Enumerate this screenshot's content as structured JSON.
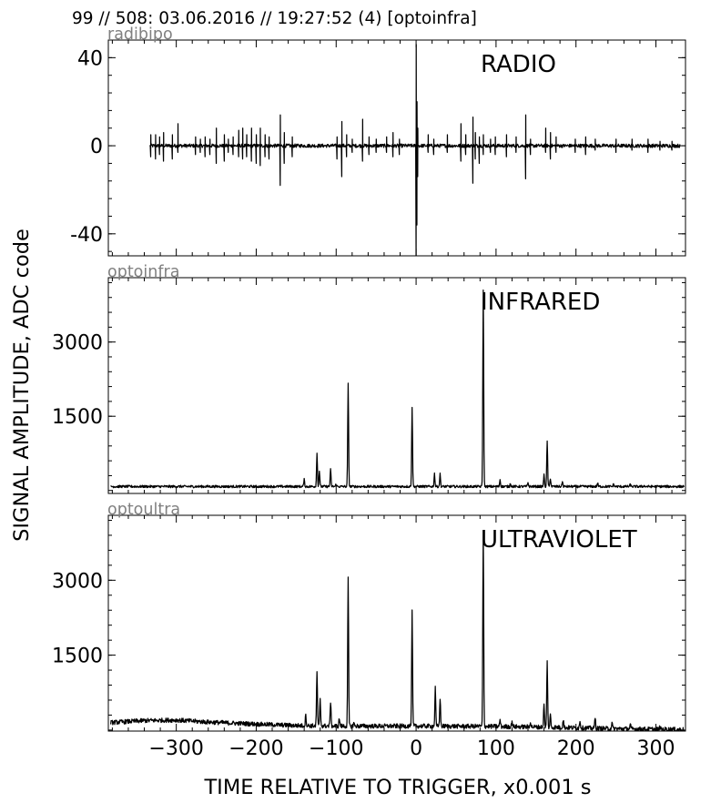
{
  "header": "99 // 508:   03.06.2016 // 19:27:52 (4)  [optoinfra]",
  "ylabel": "SIGNAL AMPLITUDE,  ADC code",
  "xlabel": "TIME RELATIVE TO TRIGGER,   x0.001 s",
  "colors": {
    "trace": "#000000",
    "panel_label": "#808080",
    "background": "#ffffff"
  },
  "chart_data": [
    {
      "type": "line",
      "panel_label": "radibipo",
      "title": "RADIO",
      "xlim": [
        -385,
        337
      ],
      "ylim": [
        -50,
        48
      ],
      "yticks": [
        {
          "value": 40,
          "label": "40"
        },
        {
          "value": 0,
          "label": "0"
        },
        {
          "value": -40,
          "label": "-40"
        }
      ],
      "xticks": [
        -300,
        -200,
        -100,
        0,
        100,
        200,
        300
      ],
      "x_range": [
        -333,
        330
      ],
      "baseline": 0,
      "noise": 0.8,
      "spikes": [
        [
          -332,
          -5,
          5
        ],
        [
          -326,
          -6,
          5
        ],
        [
          -321,
          -4,
          4
        ],
        [
          -316,
          -7,
          6
        ],
        [
          -305,
          -6,
          5
        ],
        [
          -298,
          -3,
          10
        ],
        [
          -276,
          -4,
          4
        ],
        [
          -270,
          -3,
          3
        ],
        [
          -264,
          -5,
          4
        ],
        [
          -258,
          -4,
          3
        ],
        [
          -250,
          -8,
          8
        ],
        [
          -240,
          -7,
          5
        ],
        [
          -235,
          -3,
          3
        ],
        [
          -229,
          -4,
          4
        ],
        [
          -222,
          -5,
          7
        ],
        [
          -217,
          -6,
          8
        ],
        [
          -212,
          -5,
          5
        ],
        [
          -206,
          -7,
          8
        ],
        [
          -200,
          -8,
          5
        ],
        [
          -195,
          -9,
          8
        ],
        [
          -189,
          -5,
          5
        ],
        [
          -184,
          -6,
          4
        ],
        [
          -170,
          -18,
          14
        ],
        [
          -165,
          -8,
          6
        ],
        [
          -155,
          -5,
          4
        ],
        [
          -99,
          -6,
          4
        ],
        [
          -93,
          -14,
          11
        ],
        [
          -87,
          -5,
          5
        ],
        [
          -80,
          -3,
          3
        ],
        [
          -67,
          -7,
          12
        ],
        [
          -59,
          -4,
          4
        ],
        [
          -50,
          -3,
          3
        ],
        [
          -37,
          -3,
          4
        ],
        [
          -29,
          -5,
          6
        ],
        [
          -21,
          -4,
          3
        ],
        [
          0,
          -50,
          46
        ],
        [
          1,
          -36,
          20
        ],
        [
          2,
          -14,
          8
        ],
        [
          15,
          -3,
          5
        ],
        [
          22,
          -4,
          3
        ],
        [
          39,
          -3,
          5
        ],
        [
          56,
          -7,
          10
        ],
        [
          62,
          -4,
          5
        ],
        [
          71,
          -17,
          13
        ],
        [
          74,
          -6,
          6
        ],
        [
          79,
          -8,
          4
        ],
        [
          84,
          -4,
          5
        ],
        [
          93,
          -3,
          3
        ],
        [
          99,
          -4,
          4
        ],
        [
          113,
          -5,
          5
        ],
        [
          125,
          -3,
          4
        ],
        [
          137,
          -15,
          14
        ],
        [
          143,
          -4,
          3
        ],
        [
          162,
          -3,
          8
        ],
        [
          168,
          -6,
          6
        ],
        [
          175,
          -3,
          4
        ],
        [
          199,
          -3,
          3
        ],
        [
          212,
          -4,
          4
        ],
        [
          224,
          -2,
          3
        ],
        [
          250,
          -3,
          3
        ],
        [
          270,
          -2,
          3
        ],
        [
          290,
          -3,
          3
        ],
        [
          305,
          -2,
          2
        ],
        [
          320,
          -2,
          2
        ]
      ]
    },
    {
      "type": "line",
      "panel_label": "optoinfra",
      "title": "INFRARED",
      "xlim": [
        -385,
        337
      ],
      "ylim": [
        -60,
        4300
      ],
      "yticks": [
        {
          "value": 3000,
          "label": "3000"
        },
        {
          "value": 1500,
          "label": "1500"
        }
      ],
      "xticks": [
        -300,
        -200,
        -100,
        0,
        100,
        200,
        300
      ],
      "x_range": [
        -382,
        335
      ],
      "baseline": 80,
      "noise": 25,
      "peaks": [
        [
          -140,
          220
        ],
        [
          -124,
          750
        ],
        [
          -121,
          400
        ],
        [
          -107,
          420
        ],
        [
          -100,
          130
        ],
        [
          -85,
          2150
        ],
        [
          -78,
          80
        ],
        [
          -5,
          1690
        ],
        [
          23,
          340
        ],
        [
          30,
          330
        ],
        [
          84,
          4030
        ],
        [
          105,
          220
        ],
        [
          118,
          150
        ],
        [
          140,
          160
        ],
        [
          160,
          310
        ],
        [
          164,
          1000
        ],
        [
          168,
          250
        ],
        [
          183,
          180
        ],
        [
          227,
          150
        ],
        [
          247,
          130
        ],
        [
          268,
          120
        ],
        [
          285,
          100
        ]
      ]
    },
    {
      "type": "line",
      "panel_label": "optoultra",
      "title": "ULTRAVIOLET",
      "xlim": [
        -385,
        337
      ],
      "ylim": [
        -20,
        4300
      ],
      "yticks": [
        {
          "value": 3000,
          "label": "3000"
        },
        {
          "value": 1500,
          "label": "1500"
        }
      ],
      "xticks": [
        -300,
        -200,
        -100,
        0,
        100,
        200,
        300
      ],
      "xtick_labels": [
        "−300",
        "−200",
        "−100",
        "0",
        "100",
        "200",
        "300"
      ],
      "x_range": [
        -382,
        335
      ],
      "baseline_points": [
        [
          -382,
          150
        ],
        [
          -340,
          190
        ],
        [
          -300,
          200
        ],
        [
          -260,
          160
        ],
        [
          -200,
          120
        ],
        [
          -150,
          90
        ],
        [
          -100,
          80
        ],
        [
          0,
          80
        ],
        [
          80,
          75
        ],
        [
          160,
          60
        ],
        [
          240,
          30
        ],
        [
          335,
          10
        ]
      ],
      "noise": 45,
      "peaks": [
        [
          -138,
          310
        ],
        [
          -124,
          1180
        ],
        [
          -120,
          620
        ],
        [
          -107,
          580
        ],
        [
          -96,
          240
        ],
        [
          -85,
          3060
        ],
        [
          -78,
          150
        ],
        [
          -5,
          2370
        ],
        [
          24,
          840
        ],
        [
          30,
          650
        ],
        [
          84,
          4000
        ],
        [
          105,
          210
        ],
        [
          120,
          180
        ],
        [
          143,
          180
        ],
        [
          160,
          500
        ],
        [
          164,
          1380
        ],
        [
          168,
          300
        ],
        [
          184,
          220
        ],
        [
          205,
          200
        ],
        [
          224,
          250
        ],
        [
          245,
          150
        ],
        [
          268,
          100
        ],
        [
          305,
          60
        ]
      ]
    }
  ]
}
